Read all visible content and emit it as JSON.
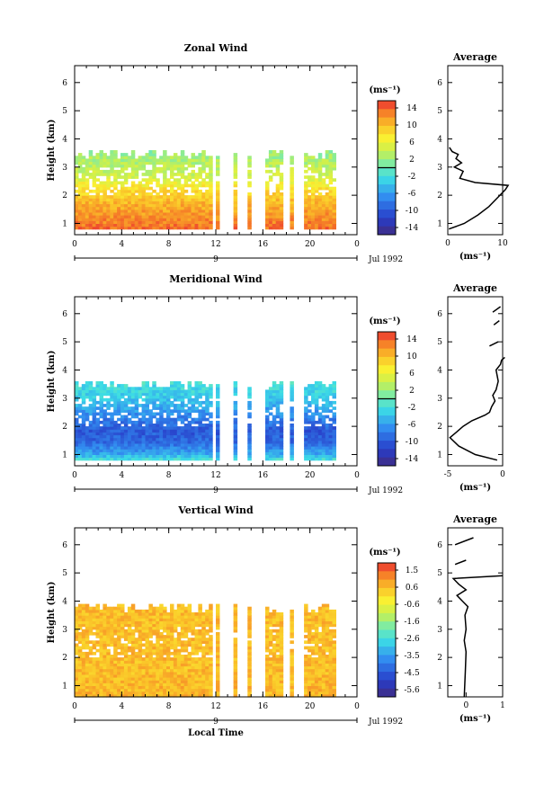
{
  "panels": [
    {
      "id": "zonal",
      "title": "Zonal Wind",
      "ylabel": "Height (km)",
      "xlabel": "",
      "unit_label": "(ms⁻¹)",
      "date_label": "Jul 1992",
      "day_label": "9",
      "xticks": [
        "0",
        "4",
        "8",
        "12",
        "16",
        "20",
        "0"
      ],
      "yticks": [
        "1",
        "2",
        "3",
        "4",
        "5",
        "6"
      ],
      "colorbar_ticks": [
        "14",
        "10",
        "6",
        "2",
        "-2",
        "-6",
        "-10",
        "-14"
      ],
      "avg_title": "Average",
      "avg_xlabel": "(ms⁻¹)",
      "avg_xticks": [
        "0",
        "10"
      ],
      "avg_yticks": [
        "1",
        "2",
        "3",
        "4",
        "5",
        "6"
      ]
    },
    {
      "id": "meridional",
      "title": "Meridional Wind",
      "ylabel": "Height (km)",
      "xlabel": "",
      "unit_label": "(ms⁻¹)",
      "date_label": "Jul 1992",
      "day_label": "9",
      "xticks": [
        "0",
        "4",
        "8",
        "12",
        "16",
        "20",
        "0"
      ],
      "yticks": [
        "1",
        "2",
        "3",
        "4",
        "5",
        "6"
      ],
      "colorbar_ticks": [
        "14",
        "10",
        "6",
        "2",
        "-2",
        "-6",
        "-10",
        "-14"
      ],
      "avg_title": "Average",
      "avg_xlabel": "(ms⁻¹)",
      "avg_xticks": [
        "-5",
        "0"
      ],
      "avg_yticks": [
        "1",
        "2",
        "3",
        "4",
        "5",
        "6"
      ]
    },
    {
      "id": "vertical",
      "title": "Vertical Wind",
      "ylabel": "Height (km)",
      "xlabel": "Local Time",
      "unit_label": "(ms⁻¹)",
      "date_label": "Jul 1992",
      "day_label": "9",
      "xticks": [
        "0",
        "4",
        "8",
        "12",
        "16",
        "20",
        "0"
      ],
      "yticks": [
        "1",
        "2",
        "3",
        "4",
        "5",
        "6"
      ],
      "colorbar_ticks": [
        "1.5",
        "0.6",
        "-0.6",
        "-1.6",
        "-2.6",
        "-3.5",
        "-4.5",
        "-5.6"
      ],
      "avg_title": "Average",
      "avg_xlabel": "(ms⁻¹)",
      "avg_xticks": [
        "0",
        "1"
      ],
      "avg_yticks": [
        "1",
        "2",
        "3",
        "4",
        "5",
        "6"
      ]
    }
  ],
  "chart_data": [
    {
      "type": "heatmap",
      "title": "Zonal Wind",
      "ylabel": "Height (km)",
      "x_range_hours": [
        0,
        24
      ],
      "y_range_km": [
        0.6,
        6.6
      ],
      "color_range": [
        -14,
        14
      ],
      "data_top_km": 3.6,
      "data_bottom_km": 0.8,
      "gaps_hours": [
        [
          11.6,
          12.0
        ],
        [
          12.4,
          13.4
        ],
        [
          13.7,
          14.6
        ],
        [
          15.0,
          16.3
        ],
        [
          17.8,
          18.3
        ],
        [
          18.5,
          19.5
        ],
        [
          22.2,
          24.0
        ]
      ],
      "profile": [
        [
          0.8,
          12
        ],
        [
          1.6,
          9.5
        ],
        [
          2.2,
          7
        ],
        [
          2.6,
          4
        ],
        [
          3.0,
          3
        ],
        [
          3.4,
          2
        ],
        [
          3.6,
          1
        ]
      ],
      "average_xlim": [
        0,
        10
      ],
      "average_profile": [
        [
          0.8,
          0.2
        ],
        [
          1.0,
          3
        ],
        [
          1.3,
          5.5
        ],
        [
          1.6,
          7.5
        ],
        [
          1.8,
          8.5
        ],
        [
          2.0,
          9.5
        ],
        [
          2.2,
          10.5
        ],
        [
          2.35,
          11
        ],
        [
          2.45,
          5
        ],
        [
          2.6,
          2.2
        ],
        [
          2.85,
          2.8
        ],
        [
          3.0,
          1.2
        ],
        [
          3.15,
          2.5
        ],
        [
          3.3,
          1.5
        ],
        [
          3.45,
          1.9
        ],
        [
          3.55,
          0.8
        ],
        [
          3.7,
          0.3
        ]
      ]
    },
    {
      "type": "heatmap",
      "title": "Meridional Wind",
      "ylabel": "Height (km)",
      "x_range_hours": [
        0,
        24
      ],
      "y_range_km": [
        0.6,
        6.6
      ],
      "color_range": [
        -14,
        14
      ],
      "data_top_km": 3.6,
      "data_bottom_km": 0.8,
      "gaps_hours": [
        [
          11.6,
          12.0
        ],
        [
          12.4,
          13.4
        ],
        [
          13.7,
          14.6
        ],
        [
          15.0,
          16.3
        ],
        [
          17.8,
          18.3
        ],
        [
          18.5,
          19.5
        ],
        [
          22.2,
          24.0
        ]
      ],
      "profile": [
        [
          0.8,
          -2
        ],
        [
          1.0,
          -5
        ],
        [
          1.4,
          -8
        ],
        [
          1.8,
          -9
        ],
        [
          2.2,
          -7
        ],
        [
          2.6,
          -5
        ],
        [
          3.0,
          -3
        ],
        [
          3.4,
          -2
        ],
        [
          3.6,
          -1
        ]
      ],
      "average_xlim": [
        -5,
        0
      ],
      "average_profile": [
        [
          0.8,
          -0.5
        ],
        [
          1.0,
          -2.5
        ],
        [
          1.3,
          -4
        ],
        [
          1.6,
          -4.8
        ],
        [
          1.8,
          -4.2
        ],
        [
          2.0,
          -3.6
        ],
        [
          2.2,
          -2.8
        ],
        [
          2.4,
          -1.6
        ],
        [
          2.5,
          -1.2
        ],
        [
          2.7,
          -1.0
        ],
        [
          2.9,
          -0.7
        ],
        [
          3.1,
          -0.9
        ],
        [
          3.3,
          -0.6
        ],
        [
          3.6,
          -0.4
        ],
        [
          3.8,
          -0.5
        ],
        [
          4.0,
          -0.6
        ],
        [
          4.2,
          -0.2
        ],
        [
          4.35,
          -0.1
        ],
        [
          4.45,
          0.2
        ]
      ],
      "average_profile_extra": [
        [
          [
            5.6,
            -0.8
          ],
          [
            5.75,
            -0.3
          ]
        ],
        [
          [
            4.85,
            -1.2
          ],
          [
            5.0,
            -0.4
          ]
        ],
        [
          [
            6.05,
            -0.9
          ],
          [
            6.25,
            -0.2
          ]
        ]
      ]
    },
    {
      "type": "heatmap",
      "title": "Vertical Wind",
      "ylabel": "Height (km)",
      "xlabel": "Local Time",
      "x_range_hours": [
        0,
        24
      ],
      "y_range_km": [
        0.6,
        6.6
      ],
      "color_range": [
        -5.6,
        1.5
      ],
      "data_top_km": 3.9,
      "data_bottom_km": 0.6,
      "gaps_hours": [
        [
          11.6,
          12.0
        ],
        [
          12.4,
          13.4
        ],
        [
          13.7,
          14.6
        ],
        [
          15.0,
          16.3
        ],
        [
          17.8,
          18.3
        ],
        [
          18.5,
          19.5
        ],
        [
          22.2,
          24.0
        ]
      ],
      "profile": [
        [
          0.6,
          0.3
        ],
        [
          1.5,
          0.2
        ],
        [
          2.5,
          0.2
        ],
        [
          3.9,
          0.2
        ]
      ],
      "average_xlim": [
        -0.5,
        1
      ],
      "average_profile": [
        [
          0.6,
          -0.05
        ],
        [
          1.5,
          -0.02
        ],
        [
          2.2,
          0.0
        ],
        [
          2.6,
          -0.05
        ],
        [
          3.0,
          0.0
        ],
        [
          3.5,
          -0.03
        ],
        [
          3.8,
          0.05
        ],
        [
          4.0,
          -0.1
        ],
        [
          4.2,
          -0.25
        ],
        [
          4.4,
          0.0
        ],
        [
          4.6,
          -0.2
        ],
        [
          4.8,
          -0.35
        ],
        [
          4.9,
          1.0
        ]
      ],
      "average_profile_extra": [
        [
          [
            5.3,
            -0.3
          ],
          [
            5.45,
            0.0
          ]
        ],
        [
          [
            6.0,
            -0.3
          ],
          [
            6.25,
            0.2
          ]
        ]
      ]
    }
  ]
}
